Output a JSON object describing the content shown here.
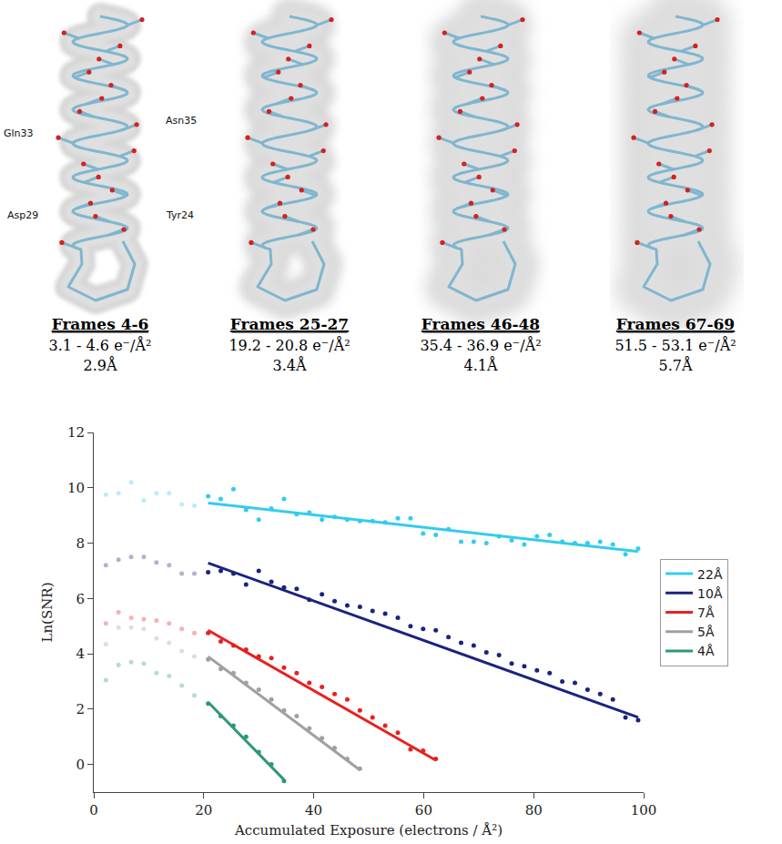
{
  "figure": {
    "maps": [
      {
        "frames": "Frames 4-6",
        "exposure": "3.1 - 4.6 e⁻/Å²",
        "resolution": "2.9Å",
        "residues": [
          "Gln33",
          "Asn35",
          "Asp29",
          "Tyr24"
        ]
      },
      {
        "frames": "Frames 25-27",
        "exposure": "19.2 - 20.8 e⁻/Å²",
        "resolution": "3.4Å"
      },
      {
        "frames": "Frames 46-48",
        "exposure": "35.4 - 36.9 e⁻/Å²",
        "resolution": "4.1Å"
      },
      {
        "frames": "Frames 67-69",
        "exposure": "51.5 - 53.1 e⁻/Å²",
        "resolution": "5.7Å"
      }
    ]
  },
  "chart_data": {
    "type": "scatter",
    "x_label": "Accumulated Exposure (electrons / Å²)",
    "y_label": "Ln(SNR)",
    "xlim": [
      0,
      100
    ],
    "ylim": [
      -1,
      12
    ],
    "xticks": [
      0,
      20,
      40,
      60,
      80,
      100
    ],
    "yticks": [
      0,
      2,
      4,
      6,
      8,
      10,
      12
    ],
    "grid": false,
    "legend": "right",
    "series": [
      {
        "name": "22Å",
        "color": "#33ccee",
        "early_frames": {
          "x": [
            2.2,
            4.5,
            6.8,
            9.1,
            11.4,
            13.7,
            16.0,
            18.3
          ],
          "values": [
            9.75,
            9.8,
            10.2,
            9.55,
            9.8,
            9.8,
            9.4,
            9.35
          ]
        },
        "x": [
          20.8,
          23.1,
          25.4,
          27.7,
          30.0,
          32.3,
          34.6,
          36.9,
          39.2,
          41.5,
          43.8,
          46.1,
          48.4,
          50.7,
          53.0,
          55.3,
          57.6,
          59.9,
          62.2,
          64.5,
          66.8,
          69.1,
          71.4,
          73.7,
          76.0,
          78.3,
          80.6,
          82.9,
          85.2,
          87.5,
          89.8,
          92.1,
          94.4,
          96.7,
          99.0
        ],
        "values": [
          9.7,
          9.6,
          9.95,
          9.2,
          8.85,
          9.25,
          9.6,
          9.05,
          9.1,
          8.85,
          8.95,
          8.85,
          8.8,
          8.8,
          8.75,
          8.9,
          8.9,
          8.35,
          8.3,
          8.5,
          8.05,
          8.05,
          8.0,
          8.25,
          8.1,
          7.95,
          8.25,
          8.3,
          8.05,
          8.0,
          8.0,
          8.05,
          7.95,
          7.6,
          7.8
        ],
        "fit": {
          "x": [
            20.8,
            99.0
          ],
          "values": [
            9.45,
            7.7
          ]
        }
      },
      {
        "name": "10Å",
        "color": "#1a237e",
        "early_frames": {
          "x": [
            2.2,
            4.5,
            6.8,
            9.1,
            11.4,
            13.7,
            16.0,
            18.3
          ],
          "values": [
            7.2,
            7.4,
            7.5,
            7.5,
            7.3,
            7.2,
            6.9,
            6.9
          ]
        },
        "x": [
          20.8,
          23.1,
          25.4,
          27.7,
          30.0,
          32.3,
          34.6,
          36.9,
          39.2,
          41.5,
          43.8,
          46.1,
          48.4,
          50.7,
          53.0,
          55.3,
          57.6,
          59.9,
          62.2,
          64.5,
          66.8,
          69.1,
          71.4,
          73.7,
          76.0,
          78.3,
          80.6,
          82.9,
          85.2,
          87.5,
          89.8,
          92.1,
          94.4,
          96.7,
          99.0
        ],
        "values": [
          6.95,
          7.0,
          6.9,
          6.5,
          7.0,
          6.6,
          6.4,
          6.35,
          5.95,
          6.15,
          5.9,
          5.75,
          5.7,
          5.55,
          5.45,
          5.3,
          5.0,
          4.9,
          4.85,
          4.6,
          4.4,
          4.3,
          4.05,
          3.95,
          3.65,
          3.55,
          3.4,
          3.3,
          3.0,
          2.95,
          2.7,
          2.55,
          2.35,
          1.7,
          1.6
        ],
        "fit": {
          "x": [
            20.8,
            99.0
          ],
          "values": [
            7.28,
            1.7
          ]
        }
      },
      {
        "name": "7Å",
        "color": "#e82020",
        "early_frames": {
          "x": [
            2.2,
            4.5,
            6.8,
            9.1,
            11.4,
            13.7,
            16.0,
            18.3
          ],
          "values": [
            5.1,
            5.5,
            5.3,
            5.25,
            5.2,
            5.1,
            4.9,
            4.75
          ]
        },
        "x": [
          20.8,
          23.1,
          25.4,
          27.7,
          30.0,
          32.3,
          34.6,
          36.9,
          39.2,
          41.5,
          43.8,
          46.1,
          48.4,
          50.7,
          53.0,
          55.3,
          57.6,
          59.9,
          62.2
        ],
        "values": [
          4.75,
          4.45,
          4.3,
          4.15,
          3.9,
          3.85,
          3.5,
          3.3,
          2.95,
          2.8,
          2.55,
          2.35,
          1.95,
          1.7,
          1.4,
          1.15,
          0.55,
          0.5,
          0.2
        ],
        "fit": {
          "x": [
            20.8,
            62.2
          ],
          "values": [
            4.85,
            0.15
          ]
        }
      },
      {
        "name": "5Å",
        "color": "#a0a0a0",
        "early_frames": {
          "x": [
            2.2,
            4.5,
            6.8,
            9.1,
            11.4,
            13.7,
            16.0,
            18.3
          ],
          "values": [
            4.35,
            4.95,
            4.95,
            4.9,
            4.55,
            4.4,
            4.1,
            3.9
          ]
        },
        "x": [
          20.8,
          23.1,
          25.4,
          27.7,
          30.0,
          32.3,
          34.6,
          36.9,
          39.2,
          41.5,
          43.8,
          46.1,
          48.4
        ],
        "values": [
          3.8,
          3.45,
          3.3,
          2.95,
          2.7,
          2.35,
          1.95,
          1.75,
          1.3,
          0.95,
          0.6,
          0.2,
          -0.15
        ],
        "fit": {
          "x": [
            20.8,
            48.4
          ],
          "values": [
            3.9,
            -0.2
          ]
        }
      },
      {
        "name": "4Å",
        "color": "#2e9970",
        "early_frames": {
          "x": [
            2.2,
            4.5,
            6.8,
            9.1,
            11.4,
            13.7,
            16.0,
            18.3
          ],
          "values": [
            3.05,
            3.6,
            3.7,
            3.65,
            3.3,
            3.2,
            2.85,
            2.5
          ]
        },
        "x": [
          20.8,
          23.1,
          25.4,
          27.7,
          30.0,
          32.3,
          34.6
        ],
        "values": [
          2.2,
          1.75,
          1.4,
          1.0,
          0.45,
          0.0,
          -0.6
        ],
        "fit": {
          "x": [
            20.8,
            34.6
          ],
          "values": [
            2.25,
            -0.55
          ]
        }
      }
    ]
  }
}
